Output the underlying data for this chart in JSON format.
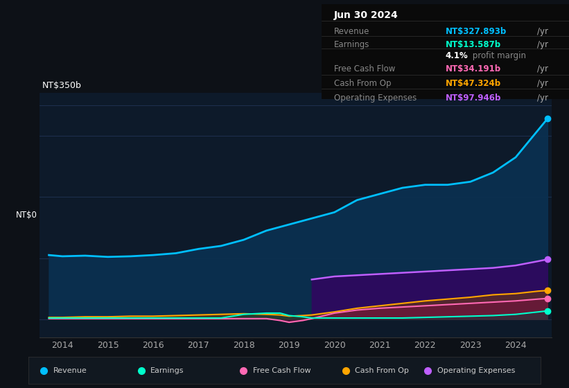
{
  "background_color": "#0d1117",
  "plot_bg_color": "#0d1a2a",
  "title_box": {
    "date": "Jun 30 2024",
    "rows": [
      {
        "label": "Revenue",
        "value": "NT$327.893b",
        "unit": "/yr",
        "color": "#00bfff"
      },
      {
        "label": "Earnings",
        "value": "NT$13.587b",
        "unit": "/yr",
        "color": "#00ffcc"
      },
      {
        "label": "",
        "value": "4.1%",
        "unit": " profit margin",
        "color": "#ffffff"
      },
      {
        "label": "Free Cash Flow",
        "value": "NT$34.191b",
        "unit": "/yr",
        "color": "#ff69b4"
      },
      {
        "label": "Cash From Op",
        "value": "NT$47.324b",
        "unit": "/yr",
        "color": "#ffa500"
      },
      {
        "label": "Operating Expenses",
        "value": "NT$97.946b",
        "unit": "/yr",
        "color": "#bf5fff"
      }
    ]
  },
  "ylabel_top": "NT$350b",
  "ylabel_zero": "NT$0",
  "xlim": [
    2013.5,
    2024.8
  ],
  "ylim": [
    -30,
    370
  ],
  "grid_color": "#1e3050",
  "grid_levels": [
    0,
    100,
    200,
    300,
    350
  ],
  "years": [
    2014,
    2015,
    2016,
    2017,
    2018,
    2019,
    2020,
    2021,
    2022,
    2023,
    2024
  ],
  "revenue": {
    "color": "#00bfff",
    "data_x": [
      2013.7,
      2014.0,
      2014.5,
      2015.0,
      2015.5,
      2016.0,
      2016.5,
      2017.0,
      2017.5,
      2018.0,
      2018.5,
      2019.0,
      2019.5,
      2020.0,
      2020.5,
      2021.0,
      2021.5,
      2022.0,
      2022.5,
      2023.0,
      2023.5,
      2024.0,
      2024.5,
      2024.7
    ],
    "data_y": [
      105,
      103,
      104,
      102,
      103,
      105,
      108,
      115,
      120,
      130,
      145,
      155,
      165,
      175,
      195,
      205,
      215,
      220,
      220,
      225,
      240,
      265,
      310,
      328
    ]
  },
  "earnings": {
    "color": "#00ffcc",
    "data_x": [
      2013.7,
      2014.0,
      2014.5,
      2015.0,
      2015.5,
      2016.0,
      2016.5,
      2017.0,
      2017.5,
      2018.0,
      2018.5,
      2018.8,
      2019.0,
      2019.3,
      2019.5,
      2020.0,
      2020.5,
      2021.0,
      2021.5,
      2022.0,
      2022.5,
      2023.0,
      2023.5,
      2024.0,
      2024.5,
      2024.7
    ],
    "data_y": [
      2,
      2,
      2,
      2,
      2,
      2,
      2,
      2,
      2,
      8,
      10,
      10,
      6,
      4,
      2,
      2,
      2,
      2,
      2,
      3,
      4,
      5,
      6,
      8,
      12,
      13.6
    ]
  },
  "free_cash_flow": {
    "color": "#ff69b4",
    "data_x": [
      2013.7,
      2014.0,
      2014.5,
      2015.0,
      2015.5,
      2016.0,
      2016.5,
      2017.0,
      2017.5,
      2018.0,
      2018.5,
      2018.8,
      2019.0,
      2019.3,
      2019.5,
      2020.0,
      2020.5,
      2021.0,
      2021.5,
      2022.0,
      2022.5,
      2023.0,
      2023.5,
      2024.0,
      2024.5,
      2024.7
    ],
    "data_y": [
      1,
      1,
      1,
      1,
      1,
      1,
      1,
      1,
      1,
      1,
      1,
      -2,
      -5,
      -2,
      1,
      10,
      15,
      18,
      20,
      22,
      24,
      26,
      28,
      30,
      33,
      34
    ]
  },
  "cash_from_op": {
    "color": "#ffa500",
    "data_x": [
      2013.7,
      2014.0,
      2014.5,
      2015.0,
      2015.5,
      2016.0,
      2016.5,
      2017.0,
      2017.5,
      2018.0,
      2018.5,
      2018.8,
      2019.0,
      2019.3,
      2019.5,
      2020.0,
      2020.5,
      2021.0,
      2021.5,
      2022.0,
      2022.5,
      2023.0,
      2023.5,
      2024.0,
      2024.5,
      2024.7
    ],
    "data_y": [
      3,
      3,
      4,
      4,
      5,
      5,
      6,
      7,
      8,
      9,
      8,
      7,
      5,
      6,
      7,
      12,
      18,
      22,
      26,
      30,
      33,
      36,
      40,
      42,
      46,
      47
    ]
  },
  "operating_expenses": {
    "color": "#bf5fff",
    "data_x": [
      2019.5,
      2020.0,
      2020.5,
      2021.0,
      2021.5,
      2022.0,
      2022.5,
      2023.0,
      2023.5,
      2024.0,
      2024.5,
      2024.7
    ],
    "data_y": [
      65,
      70,
      72,
      74,
      76,
      78,
      80,
      82,
      84,
      88,
      95,
      98
    ]
  },
  "legend_items": [
    {
      "label": "Revenue",
      "color": "#00bfff"
    },
    {
      "label": "Earnings",
      "color": "#00ffcc"
    },
    {
      "label": "Free Cash Flow",
      "color": "#ff69b4"
    },
    {
      "label": "Cash From Op",
      "color": "#ffa500"
    },
    {
      "label": "Operating Expenses",
      "color": "#bf5fff"
    }
  ]
}
